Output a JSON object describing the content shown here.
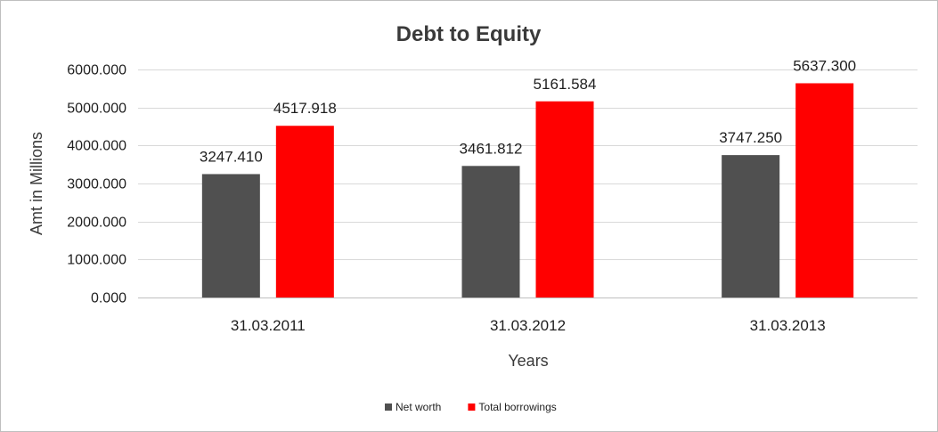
{
  "chart_data": {
    "type": "bar",
    "title": "Debt to Equity",
    "xlabel": "Years",
    "ylabel": "Amt in Millions",
    "categories": [
      "31.03.2011",
      "31.03.2012",
      "31.03.2013"
    ],
    "series": [
      {
        "name": "Net worth",
        "values": [
          3247.41,
          3461.812,
          3747.25
        ],
        "color": "#505050"
      },
      {
        "name": "Total borrowings",
        "values": [
          4517.918,
          5161.584,
          5637.3
        ],
        "color": "#ff0000"
      }
    ],
    "ylim": [
      0,
      6000
    ],
    "yticks": [
      0,
      1000,
      2000,
      3000,
      4000,
      5000,
      6000
    ],
    "tick_decimals": 3,
    "label_decimals": 3,
    "grid": true,
    "legend_position": "bottom"
  }
}
